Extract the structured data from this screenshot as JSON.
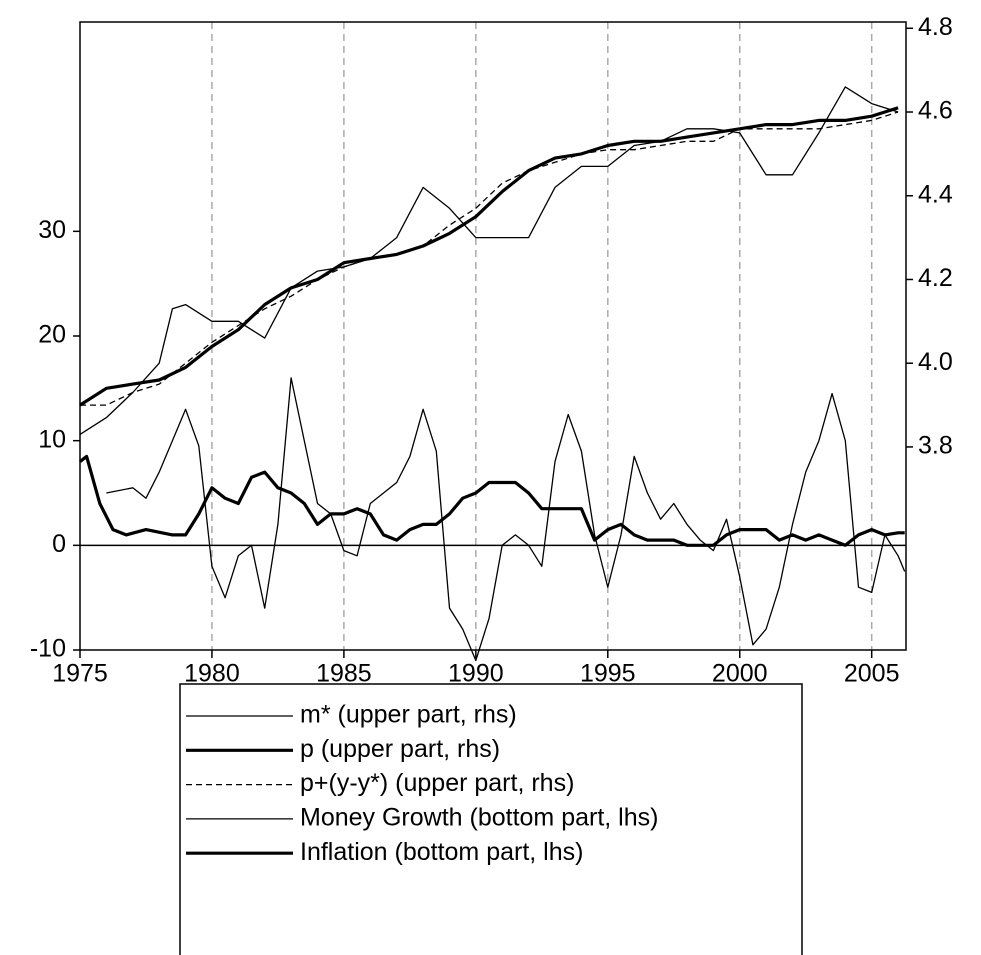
{
  "chart_data": {
    "type": "line",
    "xlim": [
      1975,
      2006.3
    ],
    "xticks": [
      1975,
      1980,
      1985,
      1990,
      1995,
      2000,
      2005
    ],
    "ylim": [
      -10,
      50
    ],
    "yticks": [
      -10,
      0,
      10,
      20,
      30
    ],
    "y2lim": [
      3.315,
      4.815
    ],
    "y2ticks": [
      3.8,
      {
        "value": 4.0,
        "label": "4.0"
      },
      4.2,
      4.4,
      4.6,
      4.8
    ],
    "grid": "x",
    "zero_line": true,
    "series": [
      {
        "name": "m* (upper part, rhs)",
        "color": "#000000",
        "line_width": 1.3,
        "dash": false,
        "axis": "y2",
        "x": [
          1975,
          1976,
          1977,
          1978,
          1978.5,
          1979,
          1980,
          1981,
          1982,
          1983,
          1984,
          1985,
          1986,
          1987,
          1988,
          1989,
          1990,
          1991,
          1992,
          1993,
          1994,
          1995,
          1996,
          1997,
          1998,
          1999,
          2000,
          2001,
          2002,
          2003,
          2004,
          2005,
          2006
        ],
        "values": [
          3.83,
          3.87,
          3.93,
          4.0,
          4.13,
          4.14,
          4.1,
          4.1,
          4.06,
          4.18,
          4.22,
          4.23,
          4.25,
          4.3,
          4.42,
          4.37,
          4.3,
          4.3,
          4.3,
          4.42,
          4.47,
          4.47,
          4.52,
          4.53,
          4.56,
          4.56,
          4.55,
          4.45,
          4.45,
          4.55,
          4.66,
          4.62,
          4.6
        ]
      },
      {
        "name": "p (upper part, rhs)",
        "color": "#000000",
        "line_width": 3.2,
        "dash": false,
        "axis": "y2",
        "x": [
          1975,
          1976,
          1977,
          1978,
          1979,
          1980,
          1981,
          1982,
          1983,
          1984,
          1985,
          1986,
          1987,
          1988,
          1989,
          1990,
          1991,
          1992,
          1993,
          1994,
          1995,
          1996,
          1997,
          1998,
          1999,
          2000,
          2001,
          2002,
          2003,
          2004,
          2005,
          2006
        ],
        "values": [
          3.9,
          3.94,
          3.95,
          3.96,
          3.99,
          4.04,
          4.08,
          4.14,
          4.18,
          4.2,
          4.24,
          4.25,
          4.26,
          4.28,
          4.31,
          4.35,
          4.41,
          4.46,
          4.49,
          4.5,
          4.52,
          4.53,
          4.53,
          4.54,
          4.55,
          4.56,
          4.57,
          4.57,
          4.58,
          4.58,
          4.59,
          4.61
        ]
      },
      {
        "name": "p+(y-y*) (upper part, rhs)",
        "color": "#000000",
        "line_width": 1.3,
        "dash": true,
        "axis": "y2",
        "x": [
          1975,
          1976,
          1977,
          1978,
          1979,
          1980,
          1981,
          1982,
          1983,
          1984,
          1985,
          1986,
          1987,
          1988,
          1989,
          1990,
          1991,
          1992,
          1993,
          1994,
          1995,
          1996,
          1997,
          1998,
          1999,
          2000,
          2001,
          2002,
          2003,
          2004,
          2005,
          2006
        ],
        "values": [
          3.9,
          3.9,
          3.93,
          3.95,
          4.0,
          4.05,
          4.09,
          4.13,
          4.16,
          4.2,
          4.23,
          4.25,
          4.26,
          4.28,
          4.33,
          4.37,
          4.43,
          4.46,
          4.48,
          4.5,
          4.51,
          4.51,
          4.52,
          4.53,
          4.53,
          4.56,
          4.56,
          4.56,
          4.56,
          4.57,
          4.58,
          4.6
        ]
      },
      {
        "name": "Money Growth (bottom part, lhs)",
        "color": "#000000",
        "line_width": 1.3,
        "dash": false,
        "axis": "y",
        "x": [
          1976,
          1977,
          1977.5,
          1978,
          1978.5,
          1979,
          1979.5,
          1980,
          1980.5,
          1981,
          1981.5,
          1982,
          1982.5,
          1983,
          1983.5,
          1984,
          1984.5,
          1985,
          1985.5,
          1986,
          1986.5,
          1987,
          1987.5,
          1988,
          1988.5,
          1989,
          1989.5,
          1990,
          1990.5,
          1991,
          1991.5,
          1992,
          1992.5,
          1993,
          1993.5,
          1994,
          1994.5,
          1995,
          1995.5,
          1996,
          1996.5,
          1997,
          1997.5,
          1998,
          1998.5,
          1999,
          1999.5,
          2000,
          2000.5,
          2001,
          2001.5,
          2002,
          2002.5,
          2003,
          2003.5,
          2004,
          2004.5,
          2005,
          2005.5,
          2006,
          2006.25
        ],
        "values": [
          5,
          5.5,
          4.5,
          7,
          10,
          13,
          9.5,
          -2,
          -5,
          -1,
          0,
          -6,
          2,
          16,
          10,
          4,
          3,
          -0.5,
          -1,
          4,
          5,
          6,
          8.5,
          13,
          9,
          -6,
          -8,
          -11,
          -7,
          0,
          1,
          0,
          -2,
          8,
          12.5,
          9,
          1,
          -4,
          1,
          8.5,
          5,
          2.5,
          4,
          2,
          0.5,
          -0.5,
          2.5,
          -3,
          -9.5,
          -8,
          -4,
          2,
          7,
          10,
          14.5,
          10,
          -4,
          -4.5,
          1,
          -1,
          -2.5
        ]
      },
      {
        "name": "Inflation (bottom part, lhs)",
        "color": "#000000",
        "line_width": 3.2,
        "dash": false,
        "axis": "y",
        "x": [
          1975,
          1975.25,
          1975.75,
          1976.25,
          1976.75,
          1977.5,
          1978.5,
          1979,
          1979.5,
          1980,
          1980.5,
          1981,
          1981.5,
          1982,
          1982.5,
          1983,
          1983.5,
          1984,
          1984.5,
          1985,
          1985.5,
          1986,
          1986.5,
          1987,
          1987.5,
          1988,
          1988.5,
          1989,
          1989.5,
          1990,
          1990.5,
          1991,
          1991.5,
          1992,
          1992.5,
          1993,
          1994,
          1994.5,
          1995,
          1995.5,
          1996,
          1996.5,
          1997,
          1997.5,
          1998,
          1998.5,
          1999,
          1999.5,
          2000,
          2000.5,
          2001,
          2001.5,
          2002,
          2002.5,
          2003,
          2003.5,
          2004,
          2004.5,
          2005,
          2005.5,
          2006,
          2006.25
        ],
        "values": [
          8,
          8.5,
          4,
          1.5,
          1,
          1.5,
          1,
          1,
          3,
          5.5,
          4.5,
          4,
          6.5,
          7,
          5.5,
          5,
          4,
          2,
          3,
          3,
          3.5,
          3,
          1,
          0.5,
          1.5,
          2,
          2,
          3,
          4.5,
          5,
          6,
          6,
          6,
          5,
          3.5,
          3.5,
          3.5,
          0.5,
          1.5,
          2,
          1,
          0.5,
          0.5,
          0.5,
          0,
          0,
          0,
          1,
          1.5,
          1.5,
          1.5,
          0.5,
          1,
          0.5,
          1,
          0.5,
          0,
          1,
          1.5,
          1,
          1.2,
          1.2
        ]
      }
    ]
  }
}
